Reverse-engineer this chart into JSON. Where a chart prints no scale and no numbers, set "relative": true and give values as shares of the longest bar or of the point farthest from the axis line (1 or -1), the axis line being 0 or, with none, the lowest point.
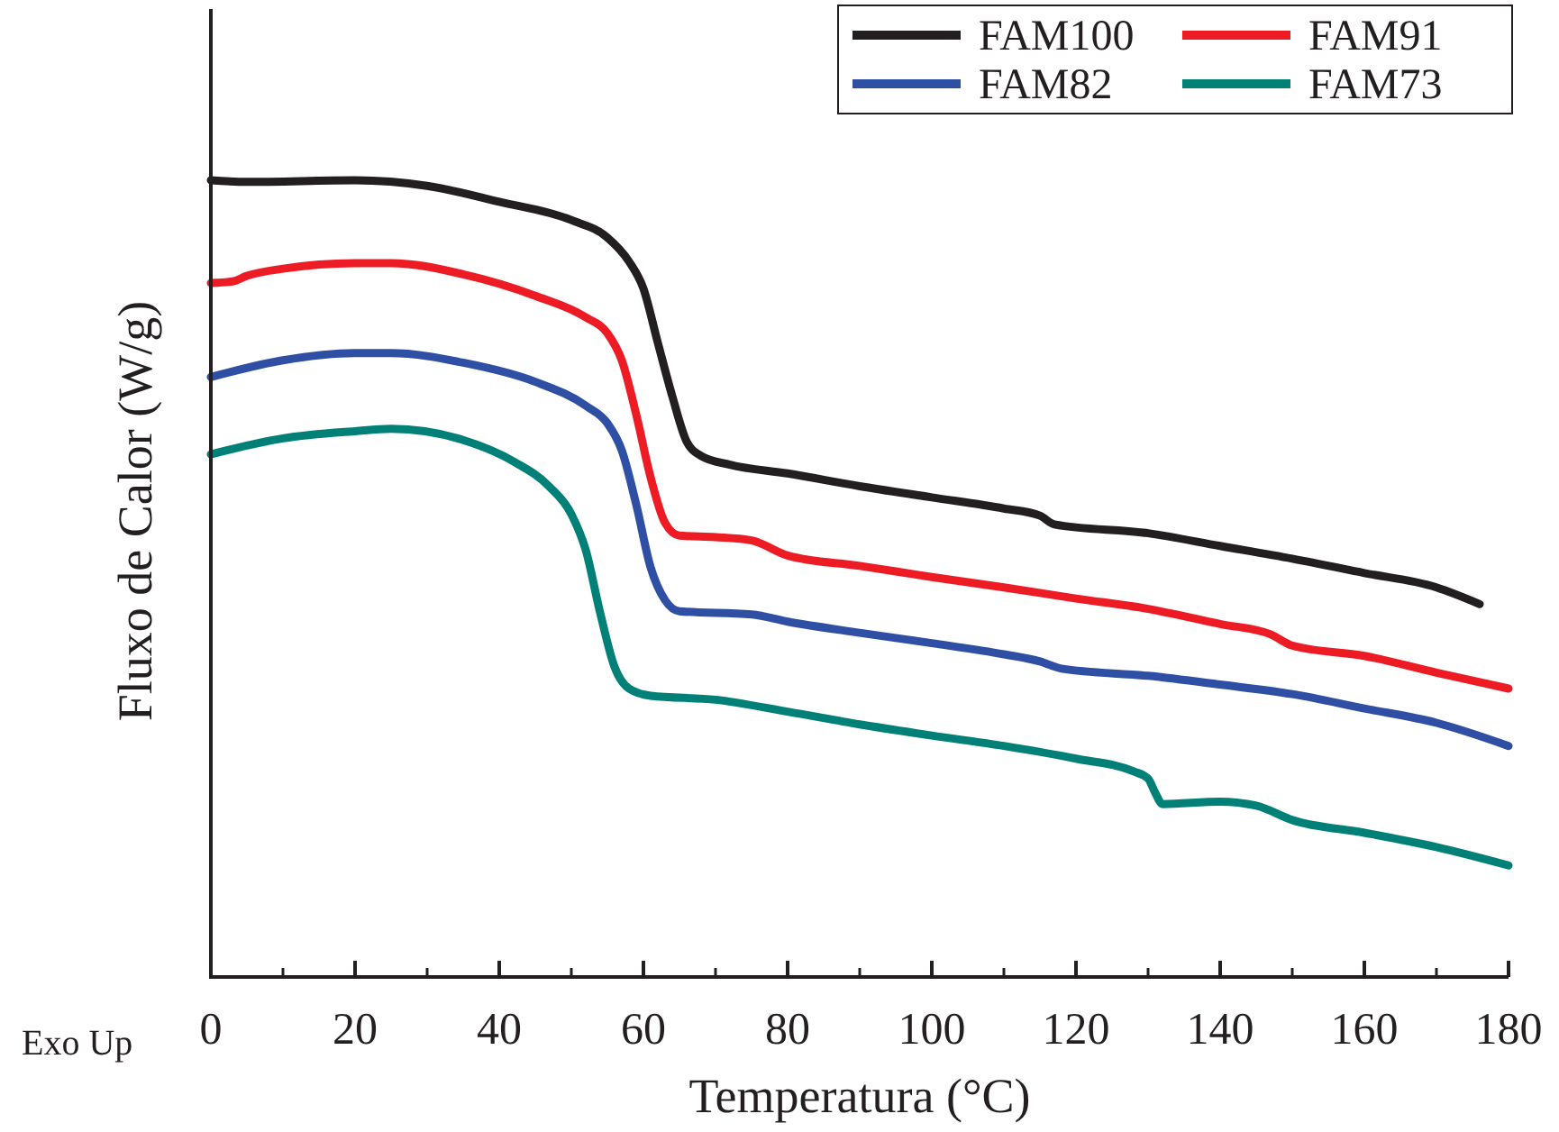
{
  "chart_data": {
    "type": "line",
    "xlabel": "Temperatura (°C)",
    "ylabel": "Fluxo de Calor (W/g)",
    "annotations": [
      "Exo Up"
    ],
    "relative": true,
    "xlim": [
      0,
      180
    ],
    "xticks": [
      0,
      20,
      40,
      60,
      80,
      100,
      120,
      140,
      160,
      180
    ],
    "grid": false,
    "legend": "top right",
    "marker": "none",
    "line_style": "solid",
    "series": [
      {
        "name": "FAM100",
        "color": "#231f20",
        "x": [
          0,
          5,
          20,
          30,
          40,
          50,
          55,
          58,
          60,
          62,
          64,
          66,
          68,
          72,
          80,
          90,
          100,
          110,
          115,
          117,
          130,
          140,
          150,
          160,
          170,
          176
        ],
        "values": [
          1.0,
          0.998,
          1.0,
          0.993,
          0.973,
          0.95,
          0.928,
          0.898,
          0.864,
          0.796,
          0.729,
          0.672,
          0.654,
          0.643,
          0.632,
          0.616,
          0.602,
          0.588,
          0.579,
          0.568,
          0.557,
          0.541,
          0.525,
          0.507,
          0.489,
          0.468
        ]
      },
      {
        "name": "FAM91",
        "color": "#ed1c24",
        "x": [
          0,
          3,
          5,
          10,
          20,
          25,
          35,
          45,
          52,
          55,
          57,
          59,
          61,
          63,
          65,
          70,
          75,
          80,
          90,
          100,
          110,
          120,
          130,
          140,
          147,
          150,
          160,
          170,
          180
        ],
        "values": [
          0.871,
          0.873,
          0.88,
          0.889,
          0.896,
          0.896,
          0.882,
          0.855,
          0.828,
          0.808,
          0.774,
          0.706,
          0.627,
          0.57,
          0.554,
          0.552,
          0.548,
          0.529,
          0.516,
          0.502,
          0.489,
          0.475,
          0.462,
          0.443,
          0.43,
          0.416,
          0.403,
          0.382,
          0.362
        ]
      },
      {
        "name": "FAM82",
        "color": "#2e4fa3",
        "x": [
          0,
          10,
          20,
          25,
          35,
          45,
          52,
          55,
          57,
          59,
          61,
          63,
          65,
          75,
          80,
          90,
          100,
          110,
          115,
          118,
          130,
          140,
          150,
          160,
          170,
          180
        ],
        "values": [
          0.753,
          0.774,
          0.783,
          0.783,
          0.771,
          0.747,
          0.717,
          0.695,
          0.661,
          0.593,
          0.514,
          0.473,
          0.459,
          0.455,
          0.446,
          0.432,
          0.419,
          0.405,
          0.396,
          0.387,
          0.378,
          0.367,
          0.355,
          0.337,
          0.319,
          0.29
        ]
      },
      {
        "name": "FAM73",
        "color": "#008077",
        "x": [
          0,
          10,
          20,
          25,
          35,
          42,
          47,
          50,
          52,
          54,
          56,
          58,
          61,
          70,
          80,
          90,
          100,
          110,
          120,
          128,
          130,
          131,
          132,
          140,
          145,
          150,
          160,
          170,
          180
        ],
        "values": [
          0.656,
          0.676,
          0.685,
          0.688,
          0.674,
          0.647,
          0.615,
          0.581,
          0.536,
          0.457,
          0.389,
          0.362,
          0.353,
          0.348,
          0.333,
          0.317,
          0.303,
          0.29,
          0.274,
          0.258,
          0.249,
          0.231,
          0.217,
          0.22,
          0.215,
          0.197,
          0.181,
          0.163,
          0.14
        ]
      }
    ]
  }
}
